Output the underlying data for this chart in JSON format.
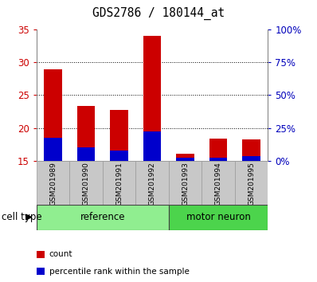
{
  "title": "GDS2786 / 180144_at",
  "samples": [
    "GSM201989",
    "GSM201990",
    "GSM201991",
    "GSM201992",
    "GSM201993",
    "GSM201994",
    "GSM201995"
  ],
  "count_values": [
    29.0,
    23.4,
    22.8,
    34.0,
    16.1,
    18.4,
    18.3
  ],
  "percentile_values": [
    18.5,
    17.0,
    16.5,
    19.5,
    15.5,
    15.5,
    15.7
  ],
  "y_min": 15,
  "y_max": 35,
  "y_ticks_left": [
    15,
    20,
    25,
    30,
    35
  ],
  "y_ticks_right_vals": [
    0,
    25,
    50,
    75,
    100
  ],
  "bar_color_red": "#cc0000",
  "bar_color_blue": "#0000cc",
  "cell_types": [
    {
      "label": "reference",
      "indices": [
        0,
        1,
        2,
        3
      ],
      "color": "#90ee90"
    },
    {
      "label": "motor neuron",
      "indices": [
        4,
        5,
        6
      ],
      "color": "#4cd44c"
    }
  ],
  "cell_type_label": "cell type",
  "legend_items": [
    {
      "label": "count",
      "color": "#cc0000"
    },
    {
      "label": "percentile rank within the sample",
      "color": "#0000cc"
    }
  ],
  "tick_color_left": "#cc0000",
  "tick_color_right": "#0000bb",
  "grid_yticks": [
    20,
    25,
    30
  ],
  "bar_width": 0.55,
  "sample_box_color": "#c8c8c8",
  "spine_color": "#888888"
}
